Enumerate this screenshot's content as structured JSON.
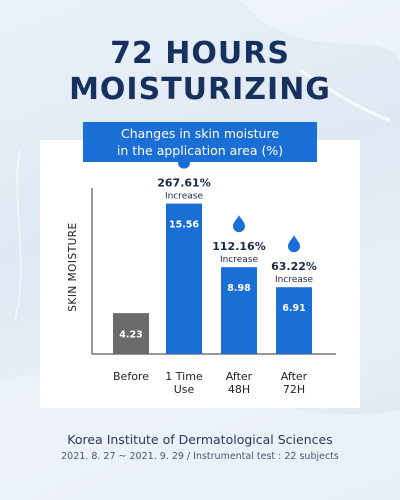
{
  "headline": {
    "line1": "72 HOURS",
    "line2": "MOISTURIZING"
  },
  "banner": {
    "line1": "Changes in skin moisture",
    "line2": "in the application area (%)"
  },
  "chart_data": {
    "type": "bar",
    "categories": [
      [
        "Before"
      ],
      [
        "1 Time",
        "Use"
      ],
      [
        "After",
        "48H"
      ],
      [
        "After",
        "72H"
      ]
    ],
    "values": [
      4.23,
      15.56,
      8.98,
      6.91
    ],
    "value_labels": [
      "4.23",
      "15.56",
      "8.98",
      "6.91"
    ],
    "increase": [
      null,
      "267.61%",
      "112.16%",
      "63.22%"
    ],
    "increase_label": "Increase",
    "ylabel": "SKIN MOISTURE",
    "xlabel": "",
    "ylim": [
      0,
      18
    ],
    "bar_colors": [
      "#6b6b6b",
      "#1a6fd6",
      "#1a6fd6",
      "#1a6fd6"
    ],
    "drop_color": "#1a6fd6",
    "grid": false
  },
  "footer": {
    "org": "Korea Institute of Dermatological Sciences",
    "note": "2021. 8. 27 ~ 2021. 9. 29 / Instrumental test : 22 subjects"
  },
  "colors": {
    "title": "#16315e",
    "accent": "#1a6fd6",
    "before_bar": "#6b6b6b"
  }
}
